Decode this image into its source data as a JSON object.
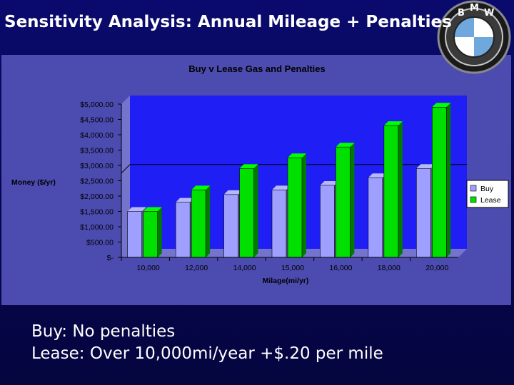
{
  "slide": {
    "title": "Sensitivity Analysis: Annual Mileage + Penalties",
    "bullets": [
      "Buy: No penalties",
      "Lease: Over 10,000mi/year +$.20 per mile"
    ]
  },
  "logo": {
    "letters": [
      "B",
      "M",
      "W"
    ]
  },
  "chart_data": {
    "type": "bar",
    "title": "Buy v Lease Gas and Penalties",
    "xlabel": "Milage(mi/yr)",
    "ylabel": "Money ($/yr)",
    "categories": [
      "10,000",
      "12,000",
      "14,000",
      "15,000",
      "16,000",
      "18,000",
      "20,000"
    ],
    "series": [
      {
        "name": "Buy",
        "values": [
          1500,
          1800,
          2050,
          2200,
          2350,
          2600,
          2900
        ],
        "color": "#9f9fff"
      },
      {
        "name": "Lease",
        "values": [
          1500,
          2200,
          2900,
          3250,
          3600,
          4300,
          4900
        ],
        "color": "#00e000"
      }
    ],
    "ylim": [
      0,
      5000
    ],
    "yticks": [
      0,
      500,
      1000,
      1500,
      2000,
      2500,
      3000,
      3500,
      4000,
      4500,
      5000
    ],
    "ytick_labels": [
      "$-",
      "$500.00",
      "$1,000.00",
      "$1,500.00",
      "$2,000.00",
      "$2,500.00",
      "$3,000.00",
      "$3,500.00",
      "$4,000.00",
      "$4,500.00",
      "$5,000.00"
    ],
    "gridline_value": 2750,
    "legend": "right",
    "colors": {
      "panel": "#4b4bb0",
      "plot_area": "#1f1ff5",
      "depth": "#7474cc",
      "gridline": "#000000"
    }
  }
}
